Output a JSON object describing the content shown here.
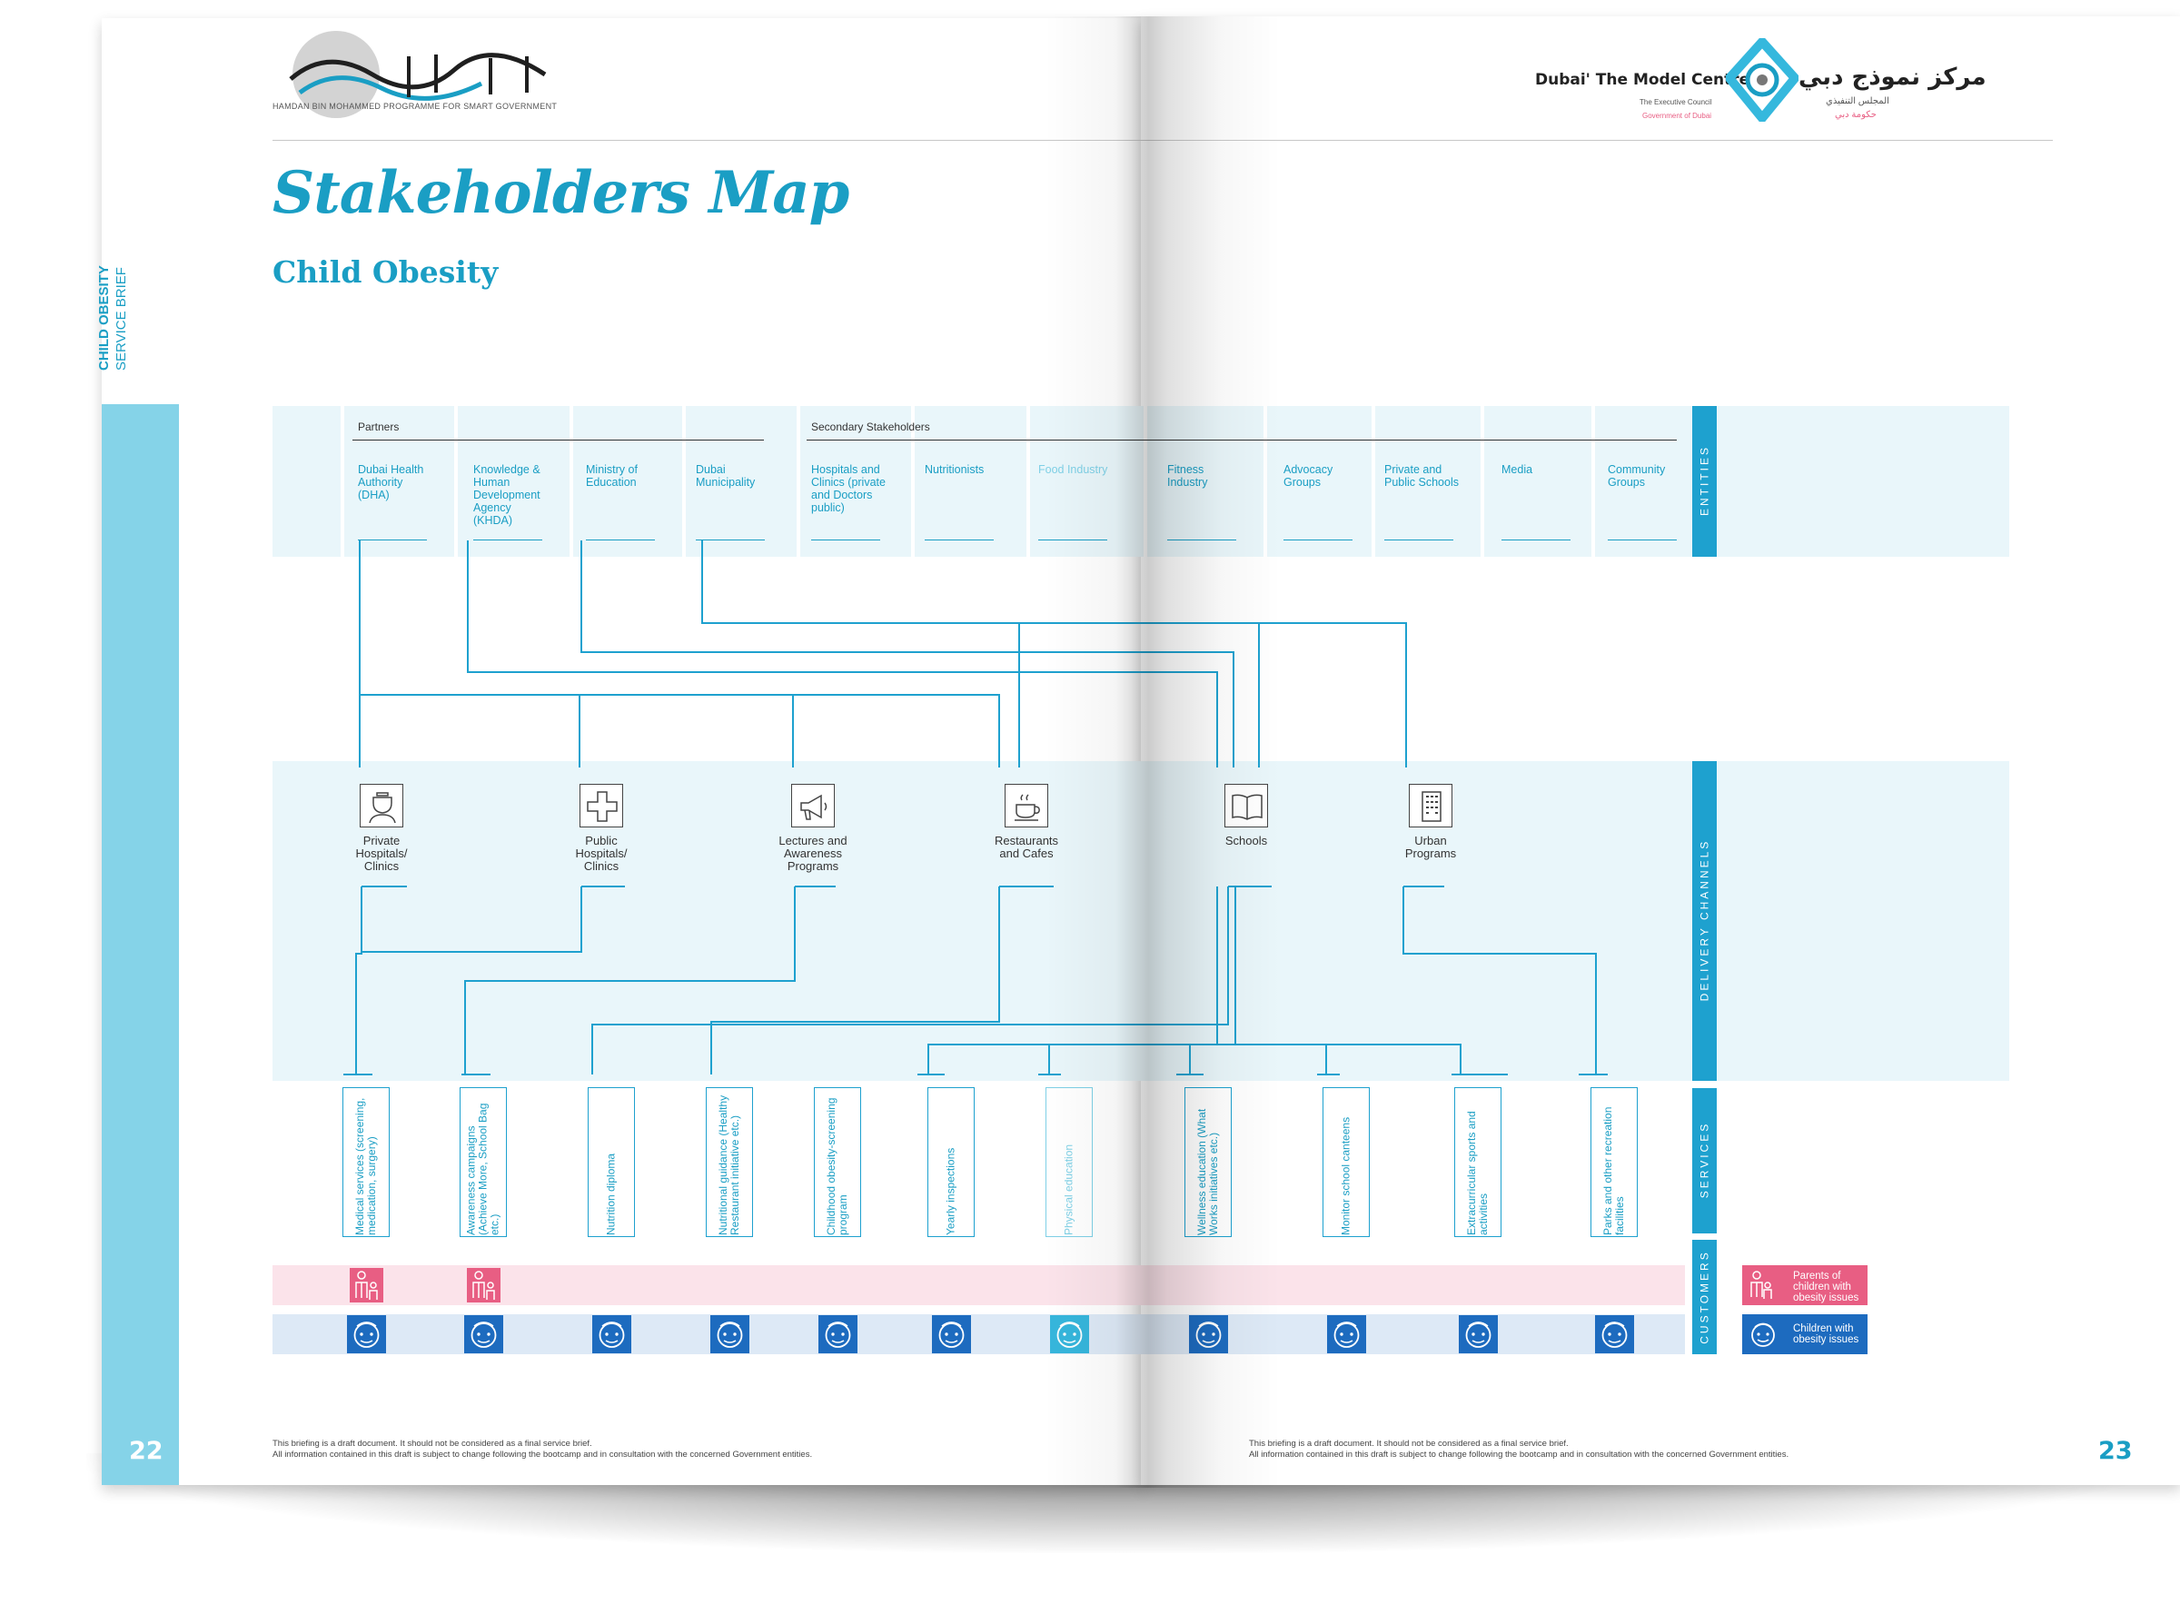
{
  "header": {
    "left_logo_caption": "HAMDAN BIN MOHAMMED PROGRAMME FOR SMART GOVERNMENT",
    "right_logo_title": "Dubai' The Model Centre",
    "right_logo_line2": "The Executive Council",
    "right_logo_line3": "Government of Dubai",
    "right_logo_arabic": "مركز نموذج دبي",
    "right_logo_arabic2": "المجلس التنفيذي",
    "right_logo_arabic3": "حكومة دبي"
  },
  "title": "Stakeholders Map",
  "subtitle": "Child Obesity",
  "sidebar": {
    "label_bold": "CHILD OBESITY",
    "label": "SERVICE BRIEF"
  },
  "pages": {
    "left": "22",
    "right": "23"
  },
  "footer": {
    "line1": "This briefing is a draft document. It should not be considered as a final service brief.",
    "line2": "All information contained in this draft is subject to change following the bootcamp and in consultation with the concerned Government entities."
  },
  "bands": {
    "entities": "ENTITIES",
    "delivery": "DELIVERY CHANNELS",
    "services": "SERVICES",
    "customers": "CUSTOMERS"
  },
  "groups": {
    "partners": "Partners",
    "secondary": "Secondary Stakeholders"
  },
  "entities": [
    "Dubai Health Authority (DHA)",
    "Knowledge & Human Development Agency (KHDA)",
    "Ministry of Education",
    "Dubai Municipality",
    "Hospitals and Clinics (private and Doctors public)",
    "Nutritionists",
    "Food Industry",
    "Fitness Industry",
    "Advocacy Groups",
    "Private and Public Schools",
    "Media",
    "Community Groups"
  ],
  "channels": [
    {
      "label": "Private Hospitals/ Clinics",
      "icon": "nurse-icon"
    },
    {
      "label": "Public Hospitals/ Clinics",
      "icon": "medical-cross-icon"
    },
    {
      "label": "Lectures and Awareness Programs",
      "icon": "megaphone-icon"
    },
    {
      "label": "Restaurants and Cafes",
      "icon": "coffee-cup-icon"
    },
    {
      "label": "Schools",
      "icon": "book-icon"
    },
    {
      "label": "Urban Programs",
      "icon": "building-icon"
    }
  ],
  "services": [
    "Medical services (screening, medication, surgery)",
    "Awareness campaigns (Achieve More, School Bag etc.)",
    "Nutrition diploma",
    "Nutritional guidance (Healthy Restaurant initiative etc.)",
    "Childhood obesity-screening program",
    "Yearly inspections",
    "Physical education",
    "Wellness education (What Works initiatives etc.)",
    "Monitor school canteens",
    "Extracurricular sports and activities",
    "Parks and other recreation facilities"
  ],
  "customers": {
    "parents": "Parents of children with obesity issues",
    "children": "Children with obesity issues"
  },
  "colors": {
    "accent": "#1a9ec4",
    "band": "#e9f6fa",
    "pink": "#e85e83",
    "blue": "#1d6bbf"
  }
}
